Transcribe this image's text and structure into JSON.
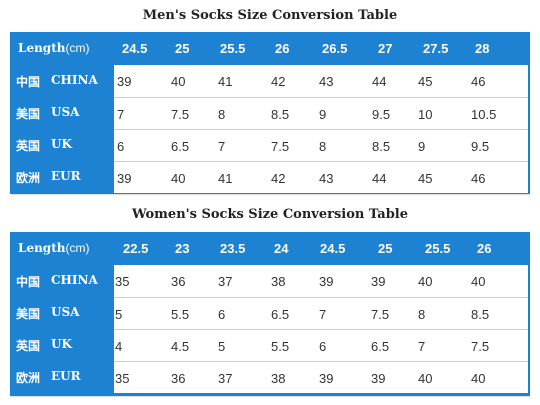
{
  "mens": {
    "title": "Men's Socks Size Conversion Table",
    "length_label": "Length",
    "length_unit": "(cm)",
    "lengths": [
      "24.5",
      "25",
      "25.5",
      "26",
      "26.5",
      "27",
      "27.5",
      "28"
    ],
    "rows": [
      {
        "zh": "中国",
        "en": "CHINA",
        "values": [
          "39",
          "40",
          "41",
          "42",
          "43",
          "44",
          "45",
          "46"
        ]
      },
      {
        "zh": "美国",
        "en": "USA",
        "values": [
          "7",
          "7.5",
          "8",
          "8.5",
          "9",
          "9.5",
          "10",
          "10.5"
        ]
      },
      {
        "zh": "英国",
        "en": "UK",
        "values": [
          "6",
          "6.5",
          "7",
          "7.5",
          "8",
          "8.5",
          "9",
          "9.5"
        ]
      },
      {
        "zh": "欧洲",
        "en": "EUR",
        "values": [
          "39",
          "40",
          "41",
          "42",
          "43",
          "44",
          "45",
          "46"
        ]
      }
    ]
  },
  "womens": {
    "title": "Women's Socks Size Conversion Table",
    "length_label": "Length",
    "length_unit": "(cm)",
    "lengths": [
      "22.5",
      "23",
      "23.5",
      "24",
      "24.5",
      "25",
      "25.5",
      "26"
    ],
    "rows": [
      {
        "zh": "中国",
        "en": "CHINA",
        "values": [
          "35",
          "36",
          "37",
          "38",
          "39",
          "39",
          "40",
          "40"
        ]
      },
      {
        "zh": "美国",
        "en": "USA",
        "values": [
          "5",
          "5.5",
          "6",
          "6.5",
          "7",
          "7.5",
          "8",
          "8.5"
        ]
      },
      {
        "zh": "英国",
        "en": "UK",
        "values": [
          "4",
          "4.5",
          "5",
          "5.5",
          "6",
          "6.5",
          "7",
          "7.5"
        ]
      },
      {
        "zh": "欧洲",
        "en": "EUR",
        "values": [
          "35",
          "36",
          "37",
          "38",
          "39",
          "39",
          "40",
          "40"
        ]
      }
    ]
  }
}
